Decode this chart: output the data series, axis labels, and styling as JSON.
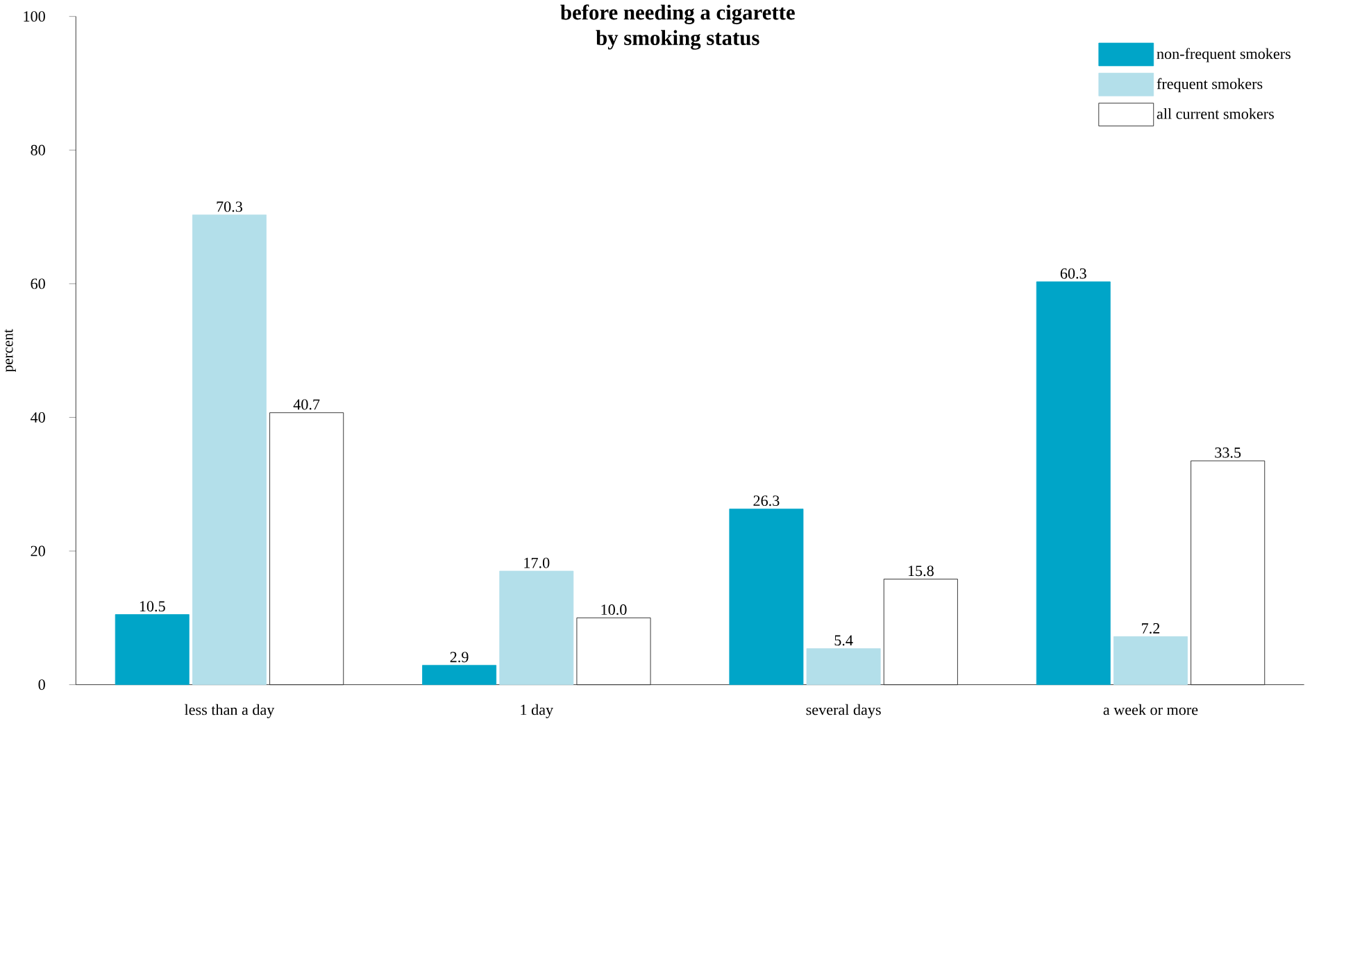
{
  "chart_data": {
    "type": "bar",
    "title": "before needing a cigarette",
    "subtitle": "by smoking status",
    "ylabel": "percent",
    "categories": [
      "less than a day",
      "1 day",
      "several days",
      "a week or more"
    ],
    "series": [
      {
        "name": "non-frequent smokers",
        "color": "#00a5c8",
        "values": [
          10.5,
          2.9,
          26.3,
          60.3
        ],
        "value_labels": [
          "10.5",
          "2.9",
          "26.3",
          "60.3"
        ]
      },
      {
        "name": "frequent smokers",
        "color": "#b3dfea",
        "values": [
          70.3,
          17.0,
          5.4,
          7.2
        ],
        "value_labels": [
          "70.3",
          "17.0",
          "5.4",
          "7.2"
        ]
      },
      {
        "name": "all current smokers",
        "color": "#ffffff",
        "values": [
          40.7,
          10.0,
          15.8,
          33.5
        ],
        "value_labels": [
          "40.7",
          "10.0",
          "15.8",
          "33.5"
        ]
      }
    ],
    "ylim": [
      0,
      100
    ],
    "yticks": [
      0,
      20,
      40,
      60,
      80,
      100
    ],
    "grid": false,
    "legend": "top right"
  }
}
